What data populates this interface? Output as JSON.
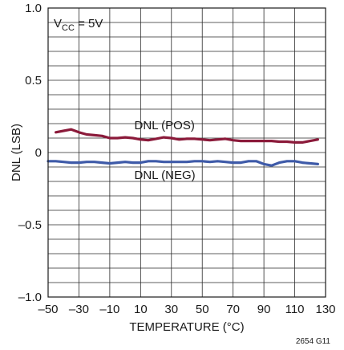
{
  "chart_data": {
    "type": "line",
    "xlabel": "TEMPERATURE (°C)",
    "ylabel": "DNL (LSB)",
    "xlim": [
      -50,
      130
    ],
    "ylim": [
      -1.0,
      1.0
    ],
    "x_ticks": [
      -50,
      -30,
      -10,
      10,
      30,
      50,
      70,
      90,
      110,
      130
    ],
    "x_tick_labels": [
      "–50",
      "–30",
      "–10",
      "10",
      "30",
      "50",
      "70",
      "90",
      "110",
      "130"
    ],
    "y_ticks": [
      -1.0,
      -0.5,
      0,
      0.5,
      1.0
    ],
    "y_tick_labels": [
      "–1.0",
      "–0.5",
      "0",
      "0.5",
      "1.0"
    ],
    "x_minor_step": 20,
    "y_minor_step": 0.1,
    "grid": true,
    "condition": {
      "main": "V",
      "sub": "CC",
      "rest": " = 5V"
    },
    "series": [
      {
        "name": "DNL (POS)",
        "color": "#8b1a3a",
        "x": [
          -45,
          -40,
          -35,
          -30,
          -25,
          -20,
          -15,
          -10,
          -5,
          0,
          5,
          10,
          15,
          20,
          25,
          30,
          35,
          40,
          45,
          50,
          55,
          60,
          65,
          70,
          75,
          80,
          85,
          90,
          95,
          100,
          105,
          110,
          115,
          120,
          125
        ],
        "y": [
          0.14,
          0.15,
          0.16,
          0.14,
          0.125,
          0.12,
          0.115,
          0.1,
          0.1,
          0.105,
          0.1,
          0.09,
          0.085,
          0.095,
          0.105,
          0.1,
          0.09,
          0.095,
          0.095,
          0.09,
          0.085,
          0.09,
          0.095,
          0.085,
          0.08,
          0.08,
          0.08,
          0.08,
          0.08,
          0.075,
          0.075,
          0.07,
          0.07,
          0.08,
          0.09
        ]
      },
      {
        "name": "DNL (NEG)",
        "color": "#3e5aa8",
        "x": [
          -50,
          -45,
          -40,
          -35,
          -30,
          -25,
          -20,
          -15,
          -10,
          -5,
          0,
          5,
          10,
          15,
          20,
          25,
          30,
          35,
          40,
          45,
          50,
          55,
          60,
          65,
          70,
          75,
          80,
          85,
          90,
          95,
          100,
          105,
          110,
          115,
          120,
          125
        ],
        "y": [
          -0.06,
          -0.06,
          -0.065,
          -0.07,
          -0.07,
          -0.065,
          -0.065,
          -0.07,
          -0.075,
          -0.07,
          -0.065,
          -0.07,
          -0.07,
          -0.06,
          -0.06,
          -0.065,
          -0.065,
          -0.065,
          -0.065,
          -0.06,
          -0.06,
          -0.065,
          -0.06,
          -0.065,
          -0.07,
          -0.07,
          -0.06,
          -0.06,
          -0.08,
          -0.09,
          -0.07,
          -0.06,
          -0.06,
          -0.07,
          -0.075,
          -0.08
        ]
      }
    ],
    "annotations": [
      {
        "text": "DNL (POS)",
        "x": 20,
        "y": 0.19
      },
      {
        "text": "DNL (NEG)",
        "x": 20,
        "y": -0.155
      }
    ],
    "figure_id": "2654 G11"
  }
}
